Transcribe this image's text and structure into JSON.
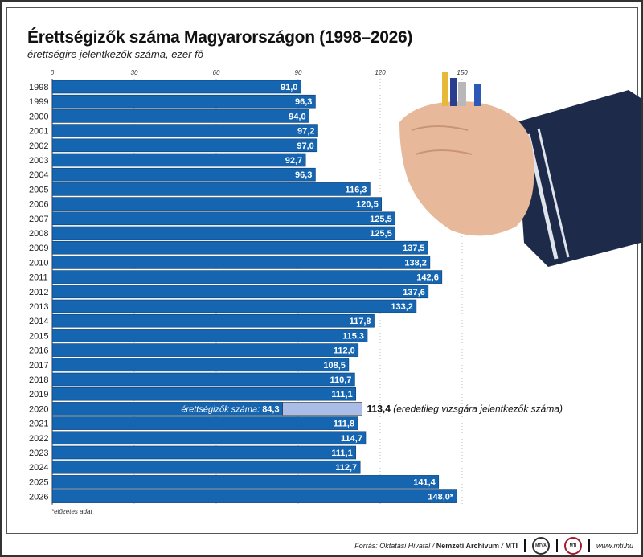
{
  "chart_data": {
    "type": "bar",
    "orientation": "horizontal",
    "title": "Érettségizők száma Magyarországon (1998–2026)",
    "subtitle": "érettségire jelentkezők száma, ezer fő",
    "xlim": [
      0,
      150
    ],
    "xticks": [
      "0",
      "30",
      "60",
      "90",
      "120",
      "150"
    ],
    "grid": true,
    "categories": [
      "1998",
      "1999",
      "2000",
      "2001",
      "2002",
      "2003",
      "2004",
      "2005",
      "2006",
      "2007",
      "2008",
      "2009",
      "2010",
      "2011",
      "2012",
      "2013",
      "2014",
      "2015",
      "2016",
      "2017",
      "2018",
      "2019",
      "2020",
      "2021",
      "2022",
      "2023",
      "2024",
      "2025",
      "2026"
    ],
    "values": [
      91.0,
      96.3,
      94.0,
      97.2,
      97.0,
      92.7,
      96.3,
      116.3,
      120.5,
      125.5,
      125.5,
      137.5,
      138.2,
      142.6,
      137.6,
      133.2,
      117.8,
      115.3,
      112.0,
      108.5,
      110.7,
      111.1,
      84.3,
      111.8,
      114.7,
      111.1,
      112.7,
      141.4,
      148.0
    ],
    "labels": [
      "91,0",
      "96,3",
      "94,0",
      "97,2",
      "97,0",
      "92,7",
      "96,3",
      "116,3",
      "120,5",
      "125,5",
      "125,5",
      "137,5",
      "138,2",
      "142,6",
      "137,6",
      "133,2",
      "117,8",
      "115,3",
      "112,0",
      "108,5",
      "110,7",
      "111,1",
      "84,3",
      "111,8",
      "114,7",
      "111,1",
      "112,7",
      "141,4",
      "148,0*"
    ],
    "special_2020": {
      "inside_label_prefix": "érettségizők száma:",
      "original_value": 113.4,
      "original_label": "113,4",
      "original_note": "(eredetileg vizsgára jelentkezők száma)"
    },
    "colors": {
      "bar": "#1565b0",
      "bar_2020_extra": "#a9bde6"
    }
  },
  "footnote": "*előzetes adat",
  "footer": {
    "source_prefix": "Forrás: Oktatási Hivatal / ",
    "source_bold": "Nemzeti Archivum",
    "source_mid": " / ",
    "source_mti": "MTI",
    "logo1": "MTVA",
    "logo2": "MTI",
    "url": "www.mti.hu"
  }
}
